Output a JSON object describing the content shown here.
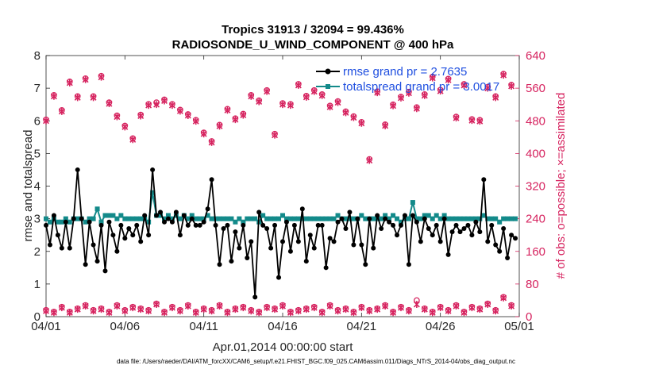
{
  "chart_data": {
    "type": "line",
    "title": "Tropics 31913 / 32094 = 99.436%",
    "subtitle": "RADIOSONDE_U_WIND_COMPONENT @ 400 hPa",
    "xlabel": "Apr.01,2014 00:00:00 start",
    "ylabel": "rmse and totalspread",
    "ylabel_right": "# of obs: o=possible; ×=assimilated",
    "footnote": "data file: /Users/raeder/DAI/ATM_forcXX/CAM6_setup/f.e21.FHIST_BGC.f09_025.CAM6assim.011/Diags_NTrS_2014-04/obs_diag_output.nc",
    "xlim": [
      0,
      30
    ],
    "ylim": [
      0,
      8
    ],
    "ylim_right": [
      0,
      640
    ],
    "x_ticks": [
      0,
      5,
      10,
      15,
      20,
      25,
      30
    ],
    "x_tick_labels": [
      "04/01",
      "04/06",
      "04/11",
      "04/16",
      "04/21",
      "04/26",
      "05/01"
    ],
    "y_ticks": [
      0,
      1,
      2,
      3,
      4,
      5,
      6,
      7,
      8
    ],
    "y_tick_labels": [
      "0",
      "1",
      "2",
      "3",
      "4",
      "5",
      "6",
      "7",
      "8"
    ],
    "y_right_ticks": [
      0,
      80,
      160,
      240,
      320,
      400,
      480,
      560,
      640
    ],
    "y_right_tick_labels": [
      "0",
      "80",
      "160",
      "240",
      "320",
      "400",
      "480",
      "560",
      "640"
    ],
    "legend": [
      "rmse grand pr = 2.7635",
      "totalspread grand pr = 3.0017"
    ],
    "legend_position": "top-right",
    "colors": {
      "rmse": "#000000",
      "spread": "#138a8a",
      "obs": "#d6235f",
      "legend_text": "#1f4fe0",
      "tick": "#262626"
    },
    "series": [
      {
        "name": "rmse",
        "x": [
          0.0,
          0.25,
          0.5,
          0.75,
          1.0,
          1.25,
          1.5,
          1.75,
          2.0,
          2.25,
          2.5,
          2.75,
          3.0,
          3.25,
          3.5,
          3.75,
          4.0,
          4.25,
          4.5,
          4.75,
          5.0,
          5.25,
          5.5,
          5.75,
          6.0,
          6.25,
          6.5,
          6.75,
          7.0,
          7.25,
          7.5,
          7.75,
          8.0,
          8.25,
          8.5,
          8.75,
          9.0,
          9.25,
          9.5,
          9.75,
          10.0,
          10.25,
          10.5,
          10.75,
          11.0,
          11.25,
          11.5,
          11.75,
          12.0,
          12.25,
          12.5,
          12.75,
          13.0,
          13.25,
          13.5,
          13.75,
          14.0,
          14.25,
          14.5,
          14.75,
          15.0,
          15.25,
          15.5,
          15.75,
          16.0,
          16.25,
          16.5,
          16.75,
          17.0,
          17.25,
          17.5,
          17.75,
          18.0,
          18.25,
          18.5,
          18.75,
          19.0,
          19.25,
          19.5,
          19.75,
          20.0,
          20.25,
          20.5,
          20.75,
          21.0,
          21.25,
          21.5,
          21.75,
          22.0,
          22.25,
          22.5,
          22.75,
          23.0,
          23.25,
          23.5,
          23.75,
          24.0,
          24.25,
          24.5,
          24.75,
          25.0,
          25.25,
          25.5,
          25.75,
          26.0,
          26.25,
          26.5,
          26.75,
          27.0,
          27.25,
          27.5,
          27.75,
          28.0,
          28.25,
          28.5,
          28.75,
          29.0,
          29.25,
          29.5,
          29.75
        ],
        "values": [
          2.8,
          2.2,
          3.1,
          2.5,
          2.1,
          2.9,
          2.1,
          3.0,
          4.5,
          3.0,
          1.6,
          2.9,
          2.2,
          1.7,
          2.8,
          1.4,
          2.9,
          2.5,
          2.0,
          2.8,
          2.4,
          2.7,
          2.5,
          2.8,
          2.3,
          3.1,
          2.5,
          4.5,
          3.1,
          3.2,
          2.9,
          3.0,
          2.9,
          3.2,
          2.5,
          3.1,
          2.8,
          3.0,
          2.8,
          2.8,
          2.9,
          3.3,
          4.2,
          2.8,
          1.6,
          2.7,
          2.8,
          1.7,
          2.6,
          2.1,
          2.8,
          1.8,
          2.3,
          0.6,
          3.2,
          2.8,
          2.7,
          2.1,
          2.8,
          1.2,
          2.3,
          2.9,
          2.0,
          2.8,
          2.3,
          3.3,
          1.7,
          2.5,
          2.1,
          2.8,
          2.8,
          1.5,
          2.4,
          2.3,
          2.9,
          3.0,
          2.7,
          3.2,
          2.2,
          3.0,
          2.2,
          1.6,
          3.0,
          2.1,
          3.1,
          2.7,
          3.0,
          2.9,
          2.8,
          2.5,
          2.8,
          3.1,
          1.6,
          3.1,
          2.9,
          2.3,
          3.0,
          2.7,
          2.5,
          2.8,
          2.3,
          3.0,
          1.9,
          2.6,
          2.8,
          2.6,
          2.7,
          2.8,
          2.5,
          2.9,
          2.6,
          4.2,
          2.3,
          2.8,
          2.2,
          2.0,
          2.7,
          1.8,
          2.5,
          2.4
        ]
      },
      {
        "name": "totalspread",
        "x": [
          0.0,
          0.25,
          0.5,
          0.75,
          1.0,
          1.25,
          1.5,
          1.75,
          2.0,
          2.25,
          2.5,
          2.75,
          3.0,
          3.25,
          3.5,
          3.75,
          4.0,
          4.25,
          4.5,
          4.75,
          5.0,
          5.25,
          5.5,
          5.75,
          6.0,
          6.25,
          6.5,
          6.75,
          7.0,
          7.25,
          7.5,
          7.75,
          8.0,
          8.25,
          8.5,
          8.75,
          9.0,
          9.25,
          9.5,
          9.75,
          10.0,
          10.25,
          10.5,
          10.75,
          11.0,
          11.25,
          11.5,
          11.75,
          12.0,
          12.25,
          12.5,
          12.75,
          13.0,
          13.25,
          13.5,
          13.75,
          14.0,
          14.25,
          14.5,
          14.75,
          15.0,
          15.25,
          15.5,
          15.75,
          16.0,
          16.25,
          16.5,
          16.75,
          17.0,
          17.25,
          17.5,
          17.75,
          18.0,
          18.25,
          18.5,
          18.75,
          19.0,
          19.25,
          19.5,
          19.75,
          20.0,
          20.25,
          20.5,
          20.75,
          21.0,
          21.25,
          21.5,
          21.75,
          22.0,
          22.25,
          22.5,
          22.75,
          23.0,
          23.25,
          23.5,
          23.75,
          24.0,
          24.25,
          24.5,
          24.75,
          25.0,
          25.25,
          25.5,
          25.75,
          26.0,
          26.25,
          26.5,
          26.75,
          27.0,
          27.25,
          27.5,
          27.75,
          28.0,
          28.25,
          28.5,
          28.75,
          29.0,
          29.25,
          29.5,
          29.75
        ],
        "values": [
          3.0,
          2.9,
          3.0,
          2.9,
          2.9,
          3.0,
          2.9,
          3.0,
          3.0,
          3.0,
          2.9,
          3.0,
          3.0,
          3.3,
          2.9,
          3.1,
          3.1,
          3.1,
          3.0,
          3.1,
          3.0,
          3.0,
          3.0,
          3.0,
          3.0,
          3.0,
          2.9,
          3.8,
          3.1,
          3.1,
          3.0,
          3.1,
          3.0,
          3.1,
          3.0,
          3.1,
          3.0,
          3.1,
          3.0,
          3.0,
          3.0,
          3.1,
          3.0,
          3.0,
          3.0,
          3.0,
          3.0,
          3.0,
          2.9,
          3.0,
          2.9,
          3.0,
          3.0,
          3.0,
          2.9,
          3.1,
          3.0,
          3.0,
          3.0,
          3.0,
          3.1,
          3.0,
          3.0,
          3.0,
          3.0,
          3.0,
          3.0,
          3.0,
          3.0,
          3.0,
          3.0,
          3.0,
          3.0,
          3.0,
          3.1,
          3.0,
          3.0,
          3.0,
          3.0,
          3.0,
          3.1,
          3.0,
          3.0,
          3.0,
          3.0,
          3.0,
          3.1,
          3.0,
          3.1,
          3.0,
          2.9,
          3.0,
          3.0,
          3.5,
          3.0,
          3.0,
          3.1,
          3.1,
          3.0,
          3.1,
          3.0,
          3.1,
          3.0,
          3.0,
          3.0,
          3.0,
          3.0,
          3.0,
          3.0,
          3.0,
          3.0,
          3.1,
          3.0,
          3.0,
          3.0,
          2.9,
          3.0,
          3.0,
          3.0,
          3.0
        ]
      },
      {
        "name": "obs_possible",
        "axis": "right",
        "x": [
          0.0,
          0.5,
          1.0,
          1.5,
          2.0,
          2.5,
          3.0,
          3.5,
          4.0,
          4.5,
          5.0,
          5.5,
          6.0,
          6.5,
          7.0,
          7.5,
          8.0,
          8.5,
          9.0,
          9.5,
          10.0,
          10.5,
          11.0,
          11.5,
          12.0,
          12.5,
          13.0,
          13.5,
          14.0,
          14.5,
          15.0,
          15.5,
          16.0,
          16.5,
          17.0,
          17.5,
          18.0,
          18.5,
          19.0,
          19.5,
          20.0,
          20.5,
          21.0,
          21.5,
          22.0,
          22.5,
          23.0,
          23.5,
          24.0,
          24.5,
          25.0,
          25.5,
          26.0,
          26.5,
          27.0,
          27.5,
          28.0,
          28.5,
          29.0,
          29.5
        ],
        "values": [
          483,
          543,
          506,
          576,
          540,
          584,
          540,
          590,
          525,
          493,
          468,
          437,
          495,
          521,
          525,
          532,
          521,
          507,
          496,
          482,
          451,
          430,
          470,
          509,
          486,
          497,
          543,
          530,
          555,
          448,
          523,
          521,
          570,
          541,
          555,
          545,
          517,
          528,
          503,
          491,
          477,
          386,
          552,
          471,
          520,
          539,
          551,
          513,
          545,
          588,
          556,
          583,
          490,
          570,
          484,
          482,
          563,
          540,
          595,
          568
        ]
      },
      {
        "name": "obs_assimilated",
        "axis": "right",
        "x": [
          0.0,
          0.5,
          1.0,
          1.5,
          2.0,
          2.5,
          3.0,
          3.5,
          4.0,
          4.5,
          5.0,
          5.5,
          6.0,
          6.5,
          7.0,
          7.5,
          8.0,
          8.5,
          9.0,
          9.5,
          10.0,
          10.5,
          11.0,
          11.5,
          12.0,
          12.5,
          13.0,
          13.5,
          14.0,
          14.5,
          15.0,
          15.5,
          16.0,
          16.5,
          17.0,
          17.5,
          18.0,
          18.5,
          19.0,
          19.5,
          20.0,
          20.5,
          21.0,
          21.5,
          22.0,
          22.5,
          23.0,
          23.5,
          24.0,
          24.5,
          25.0,
          25.5,
          26.0,
          26.5,
          27.0,
          27.5,
          28.0,
          28.5,
          29.0,
          29.5
        ],
        "values": [
          480,
          540,
          503,
          573,
          537,
          581,
          537,
          587,
          522,
          490,
          465,
          434,
          492,
          518,
          520,
          529,
          518,
          504,
          493,
          479,
          448,
          427,
          467,
          506,
          483,
          494,
          540,
          527,
          552,
          445,
          520,
          518,
          567,
          538,
          552,
          542,
          514,
          525,
          500,
          488,
          474,
          383,
          549,
          468,
          517,
          536,
          548,
          510,
          542,
          585,
          553,
          580,
          487,
          567,
          481,
          479,
          560,
          537,
          592,
          565
        ]
      },
      {
        "name": "obs_possible_low",
        "axis": "right",
        "x": [
          0.0,
          0.5,
          1.0,
          1.5,
          2.0,
          2.5,
          3.0,
          3.5,
          4.0,
          4.5,
          5.0,
          5.5,
          6.0,
          6.5,
          7.0,
          7.5,
          8.0,
          8.5,
          9.0,
          9.5,
          10.0,
          10.5,
          11.0,
          11.5,
          12.0,
          12.5,
          13.0,
          13.5,
          14.0,
          14.5,
          15.0,
          15.5,
          16.0,
          16.5,
          17.0,
          17.5,
          18.0,
          18.5,
          19.0,
          19.5,
          20.0,
          20.5,
          21.0,
          21.5,
          22.0,
          22.5,
          23.0,
          23.5,
          24.0,
          24.5,
          25.0,
          25.5,
          26.0,
          26.5,
          27.0,
          27.5,
          28.0,
          28.5,
          29.0,
          29.5
        ],
        "values": [
          16,
          12,
          24,
          12,
          20,
          28,
          16,
          20,
          12,
          28,
          16,
          24,
          20,
          16,
          32,
          12,
          24,
          16,
          28,
          12,
          20,
          16,
          28,
          12,
          20,
          24,
          16,
          12,
          24,
          20,
          28,
          12,
          16,
          20,
          24,
          12,
          28,
          16,
          20,
          12,
          24,
          16,
          20,
          28,
          12,
          24,
          16,
          40,
          20,
          12,
          24,
          16,
          28,
          12,
          24,
          20,
          32,
          16,
          48,
          28
        ]
      },
      {
        "name": "obs_assimilated_low",
        "axis": "right",
        "x": [
          0.0,
          0.5,
          1.0,
          1.5,
          2.0,
          2.5,
          3.0,
          3.5,
          4.0,
          4.5,
          5.0,
          5.5,
          6.0,
          6.5,
          7.0,
          7.5,
          8.0,
          8.5,
          9.0,
          9.5,
          10.0,
          10.5,
          11.0,
          11.5,
          12.0,
          12.5,
          13.0,
          13.5,
          14.0,
          14.5,
          15.0,
          15.5,
          16.0,
          16.5,
          17.0,
          17.5,
          18.0,
          18.5,
          19.0,
          19.5,
          20.0,
          20.5,
          21.0,
          21.5,
          22.0,
          22.5,
          23.0,
          23.5,
          24.0,
          24.5,
          25.0,
          25.5,
          26.0,
          26.5,
          27.0,
          27.5,
          28.0,
          28.5,
          29.0,
          29.5
        ],
        "values": [
          14,
          10,
          22,
          10,
          18,
          26,
          14,
          18,
          10,
          26,
          14,
          22,
          18,
          14,
          30,
          10,
          22,
          14,
          26,
          10,
          18,
          14,
          26,
          10,
          18,
          22,
          14,
          10,
          22,
          18,
          26,
          10,
          14,
          18,
          22,
          10,
          26,
          14,
          18,
          10,
          22,
          14,
          18,
          26,
          10,
          22,
          14,
          30,
          18,
          10,
          22,
          14,
          26,
          10,
          22,
          18,
          30,
          14,
          46,
          26
        ]
      }
    ]
  }
}
